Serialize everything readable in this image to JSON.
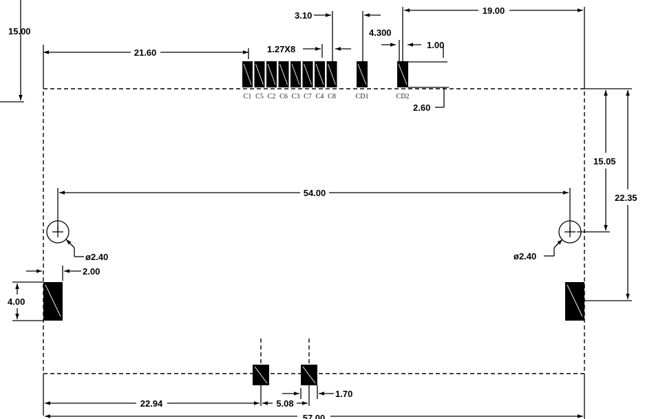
{
  "dimensions": {
    "d_15_00_left": "15.00",
    "d_21_60": "21.60",
    "d_3_10": "3.10",
    "d_1_27x8": "1.27X8",
    "d_4_300": "4.300",
    "d_1_00": "1.00",
    "d_19_00": "19.00",
    "d_2_60": "2.60",
    "d_15_05": "15.05",
    "d_22_35": "22.35",
    "d_54_00": "54.00",
    "d_dia_left": "ø2.40",
    "d_dia_right": "ø2.40",
    "d_2_00": "2.00",
    "d_4_00": "4.00",
    "d_22_94": "22.94",
    "d_5_08": "5.08",
    "d_1_70": "1.70",
    "d_57_00": "57.00"
  },
  "contacts": [
    "C1",
    "C5",
    "C2",
    "C6",
    "C3",
    "C7",
    "C4",
    "C8"
  ],
  "detect_pins": [
    "CD1",
    "CD2"
  ]
}
